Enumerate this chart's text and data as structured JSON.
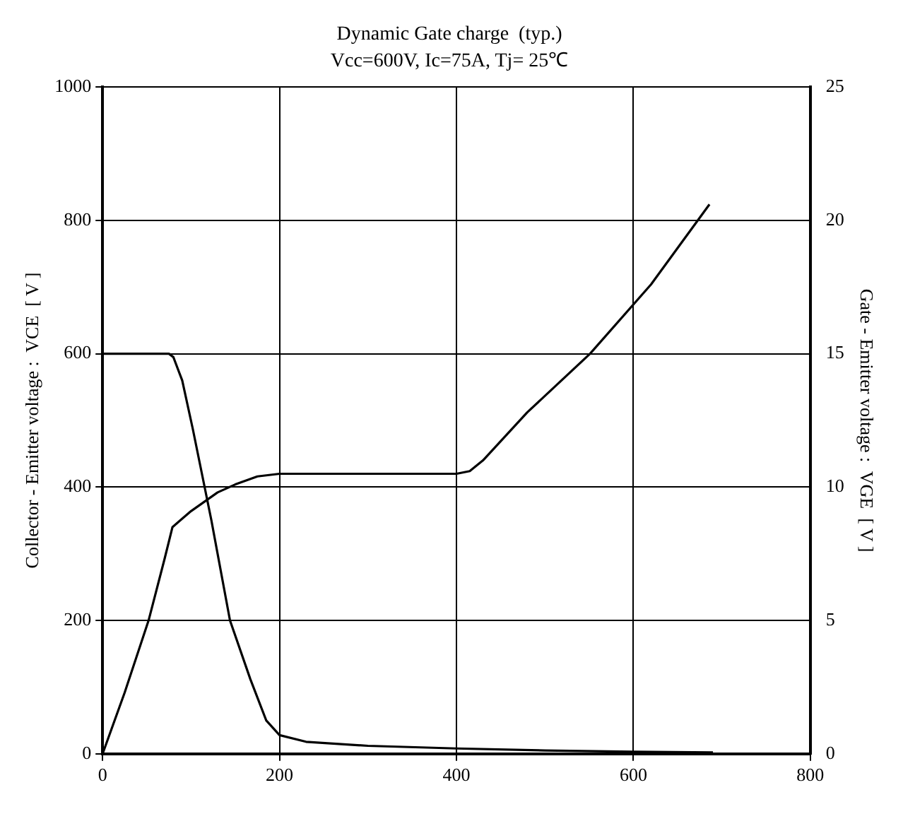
{
  "chart_data": {
    "type": "line",
    "title": "Dynamic Gate charge  (typ.)",
    "subtitle": "Vcc=600V, Ic=75A, Tj= 25℃",
    "ylabel": "Collector - Emitter voltage :  VCE  [ V ]",
    "y2label": "Gate - Emitter voltage :  VGE  [ V ]",
    "xlim": [
      0,
      800
    ],
    "xticks": [
      0,
      200,
      400,
      600,
      800
    ],
    "ylim": [
      0,
      1000
    ],
    "yticks": [
      0,
      200,
      400,
      600,
      800,
      1000
    ],
    "y2lim": [
      0,
      25
    ],
    "y2ticks": [
      0,
      5,
      10,
      15,
      20,
      25
    ],
    "grid": true,
    "legend": false,
    "marker": "none",
    "line_style": "solid",
    "series": [
      {
        "color": "#000000",
        "x": [
          0,
          75,
          80,
          90,
          102,
          123,
          144,
          167,
          185,
          200,
          230,
          300,
          400,
          500,
          600,
          690
        ],
        "values": [
          600,
          600,
          595,
          560,
          487,
          350,
          200,
          112,
          50,
          28,
          18,
          12,
          8,
          5,
          3,
          2
        ]
      },
      {
        "color": "#000000",
        "axis": "y2",
        "x": [
          0,
          25,
          52,
          70,
          79,
          100,
          130,
          150,
          175,
          200,
          300,
          400,
          415,
          430,
          480,
          551,
          620,
          686
        ],
        "values": [
          0,
          2.3,
          5,
          7.3,
          8.5,
          9.1,
          9.8,
          10.1,
          10.4,
          10.5,
          10.5,
          10.5,
          10.6,
          11,
          12.8,
          15,
          17.6,
          20.6
        ]
      }
    ]
  }
}
